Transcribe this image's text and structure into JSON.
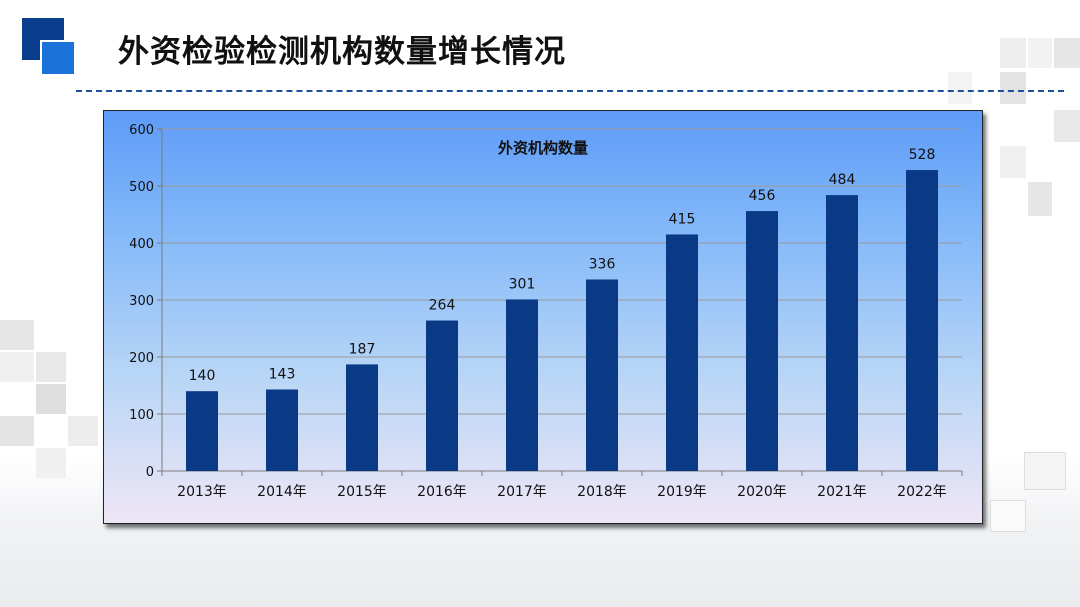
{
  "page": {
    "title": "外资检验检测机构数量增长情况"
  },
  "chart_data": {
    "type": "bar",
    "title": "外资机构数量",
    "categories": [
      "2013年",
      "2014年",
      "2015年",
      "2016年",
      "2017年",
      "2018年",
      "2019年",
      "2020年",
      "2021年",
      "2022年"
    ],
    "series": [
      {
        "values": [
          140,
          143,
          187,
          264,
          301,
          336,
          415,
          456,
          484,
          528
        ]
      }
    ],
    "ylim": [
      0,
      600
    ],
    "yticks": [
      0,
      100,
      200,
      300,
      400,
      500,
      600
    ],
    "grid": true,
    "data_labels": true,
    "colors": {
      "bar": "#0a3a86",
      "grid": "#9a9a9a",
      "axis": "#7a7a7a"
    }
  }
}
